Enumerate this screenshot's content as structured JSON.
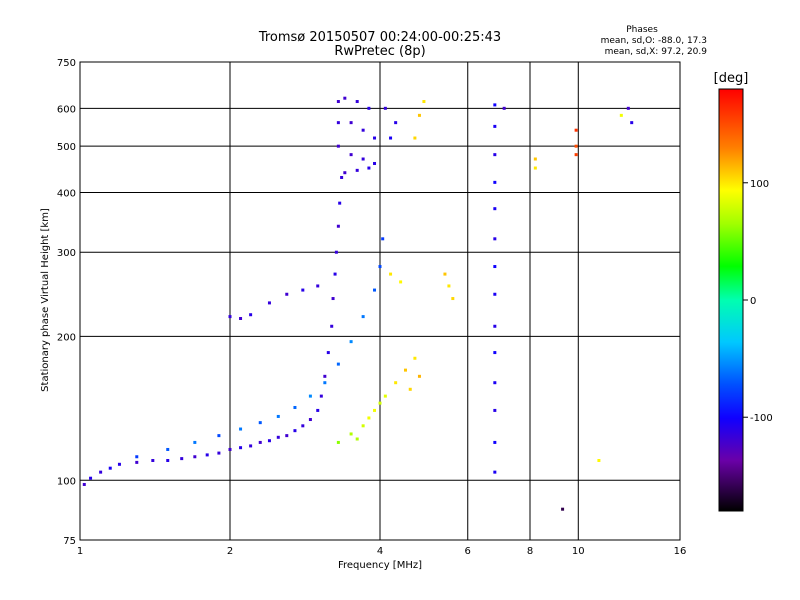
{
  "chart_data": {
    "type": "scatter",
    "title": "Tromsø 20150507 00:24:00-00:25:43",
    "subtitle": "RwPretec (8p)",
    "xlabel": "Frequency [MHz]",
    "ylabel": "Stationary phase Virtual Height [km]",
    "x_scale": "log",
    "y_scale": "log",
    "xlim": [
      1,
      16
    ],
    "ylim": [
      75,
      750
    ],
    "x_ticks": [
      1,
      2,
      4,
      6,
      8,
      10,
      16
    ],
    "y_ticks": [
      75,
      100,
      200,
      300,
      400,
      500,
      600,
      750
    ],
    "grid": true,
    "legend": {
      "title": "Phases",
      "lines": [
        "mean, sd,O: -88.0, 17.3",
        "mean, sd,X:  97.2, 20.9"
      ],
      "position": "top-right"
    },
    "colorbar": {
      "label": "[deg]",
      "range": [
        -180,
        180
      ],
      "ticks": [
        100,
        0,
        -100
      ]
    },
    "series": [
      {
        "points": [
          [
            1.02,
            98,
            -120
          ],
          [
            1.05,
            101,
            -110
          ],
          [
            1.1,
            104,
            -115
          ],
          [
            1.15,
            106,
            -105
          ],
          [
            1.2,
            108,
            -110
          ],
          [
            1.3,
            109,
            -120
          ],
          [
            1.4,
            110,
            -115
          ],
          [
            1.5,
            110,
            -110
          ],
          [
            1.6,
            111,
            -115
          ],
          [
            1.7,
            112,
            -120
          ],
          [
            1.8,
            113,
            -110
          ],
          [
            1.9,
            114,
            -115
          ],
          [
            2.0,
            116,
            -120
          ],
          [
            2.1,
            117,
            -110
          ],
          [
            2.2,
            118,
            -115
          ],
          [
            2.3,
            120,
            -120
          ],
          [
            2.4,
            121,
            -110
          ],
          [
            2.5,
            123,
            -115
          ],
          [
            2.6,
            124,
            -120
          ],
          [
            2.7,
            127,
            -110
          ],
          [
            2.8,
            130,
            -115
          ],
          [
            2.9,
            134,
            -120
          ],
          [
            3.0,
            140,
            -110
          ],
          [
            3.05,
            150,
            -115
          ],
          [
            3.1,
            165,
            -120
          ],
          [
            3.15,
            185,
            -110
          ],
          [
            3.2,
            210,
            -115
          ],
          [
            3.22,
            240,
            -120
          ],
          [
            3.25,
            270,
            -110
          ],
          [
            3.27,
            300,
            -115
          ],
          [
            3.3,
            340,
            -120
          ],
          [
            3.32,
            380,
            -110
          ],
          [
            3.35,
            430,
            -115
          ],
          [
            3.3,
            500,
            -120
          ],
          [
            3.3,
            560,
            -115
          ],
          [
            3.3,
            620,
            -120
          ],
          [
            1.3,
            112,
            -80
          ],
          [
            1.5,
            116,
            -70
          ],
          [
            1.7,
            120,
            -60
          ],
          [
            1.9,
            124,
            -75
          ],
          [
            2.1,
            128,
            -60
          ],
          [
            2.3,
            132,
            -70
          ],
          [
            2.5,
            136,
            -60
          ],
          [
            2.7,
            142,
            -65
          ],
          [
            2.9,
            150,
            -55
          ],
          [
            3.1,
            160,
            -60
          ],
          [
            3.3,
            175,
            -65
          ],
          [
            3.5,
            195,
            -55
          ],
          [
            3.7,
            220,
            -60
          ],
          [
            3.9,
            250,
            -70
          ],
          [
            4.0,
            280,
            -75
          ],
          [
            4.05,
            320,
            -80
          ],
          [
            2.0,
            220,
            -115
          ],
          [
            2.1,
            218,
            -120
          ],
          [
            2.2,
            222,
            -110
          ],
          [
            2.4,
            235,
            -115
          ],
          [
            2.6,
            245,
            -120
          ],
          [
            2.8,
            250,
            -110
          ],
          [
            3.0,
            255,
            -115
          ],
          [
            3.4,
            630,
            -120
          ],
          [
            3.6,
            620,
            -115
          ],
          [
            3.8,
            600,
            -110
          ],
          [
            3.5,
            560,
            -120
          ],
          [
            3.7,
            540,
            -115
          ],
          [
            3.9,
            520,
            -110
          ],
          [
            3.5,
            480,
            -120
          ],
          [
            3.7,
            470,
            -115
          ],
          [
            3.9,
            460,
            -110
          ],
          [
            3.4,
            440,
            -120
          ],
          [
            3.6,
            445,
            -115
          ],
          [
            3.8,
            450,
            -110
          ],
          [
            4.2,
            520,
            -105
          ],
          [
            4.3,
            560,
            -110
          ],
          [
            4.1,
            600,
            -115
          ],
          [
            3.3,
            120,
            60
          ],
          [
            3.5,
            125,
            70
          ],
          [
            3.7,
            130,
            80
          ],
          [
            3.9,
            140,
            90
          ],
          [
            4.1,
            150,
            85
          ],
          [
            4.3,
            160,
            100
          ],
          [
            4.5,
            170,
            110
          ],
          [
            4.7,
            180,
            100
          ],
          [
            4.8,
            165,
            115
          ],
          [
            4.6,
            155,
            105
          ],
          [
            3.8,
            135,
            90
          ],
          [
            4.0,
            145,
            80
          ],
          [
            3.6,
            122,
            70
          ],
          [
            4.2,
            270,
            100
          ],
          [
            4.4,
            260,
            95
          ],
          [
            5.4,
            270,
            110
          ],
          [
            5.5,
            255,
            100
          ],
          [
            5.6,
            240,
            105
          ],
          [
            4.8,
            580,
            110
          ],
          [
            4.9,
            620,
            100
          ],
          [
            4.7,
            520,
            105
          ],
          [
            6.8,
            610,
            -100
          ],
          [
            6.8,
            550,
            -105
          ],
          [
            6.8,
            480,
            -110
          ],
          [
            6.8,
            420,
            -100
          ],
          [
            6.8,
            370,
            -105
          ],
          [
            6.8,
            320,
            -110
          ],
          [
            6.8,
            280,
            -100
          ],
          [
            6.8,
            245,
            -105
          ],
          [
            6.8,
            210,
            -110
          ],
          [
            6.8,
            185,
            -100
          ],
          [
            6.8,
            160,
            -105
          ],
          [
            6.8,
            140,
            -110
          ],
          [
            6.8,
            120,
            -100
          ],
          [
            6.8,
            104,
            -105
          ],
          [
            9.9,
            540,
            160
          ],
          [
            9.9,
            500,
            150
          ],
          [
            9.9,
            480,
            155
          ],
          [
            8.2,
            470,
            110
          ],
          [
            8.2,
            450,
            100
          ],
          [
            7.1,
            600,
            -120
          ],
          [
            11.0,
            110,
            95
          ],
          [
            9.3,
            87,
            -160
          ],
          [
            12.2,
            580,
            90
          ],
          [
            12.6,
            600,
            -120
          ],
          [
            12.8,
            560,
            -110
          ]
        ]
      }
    ]
  }
}
